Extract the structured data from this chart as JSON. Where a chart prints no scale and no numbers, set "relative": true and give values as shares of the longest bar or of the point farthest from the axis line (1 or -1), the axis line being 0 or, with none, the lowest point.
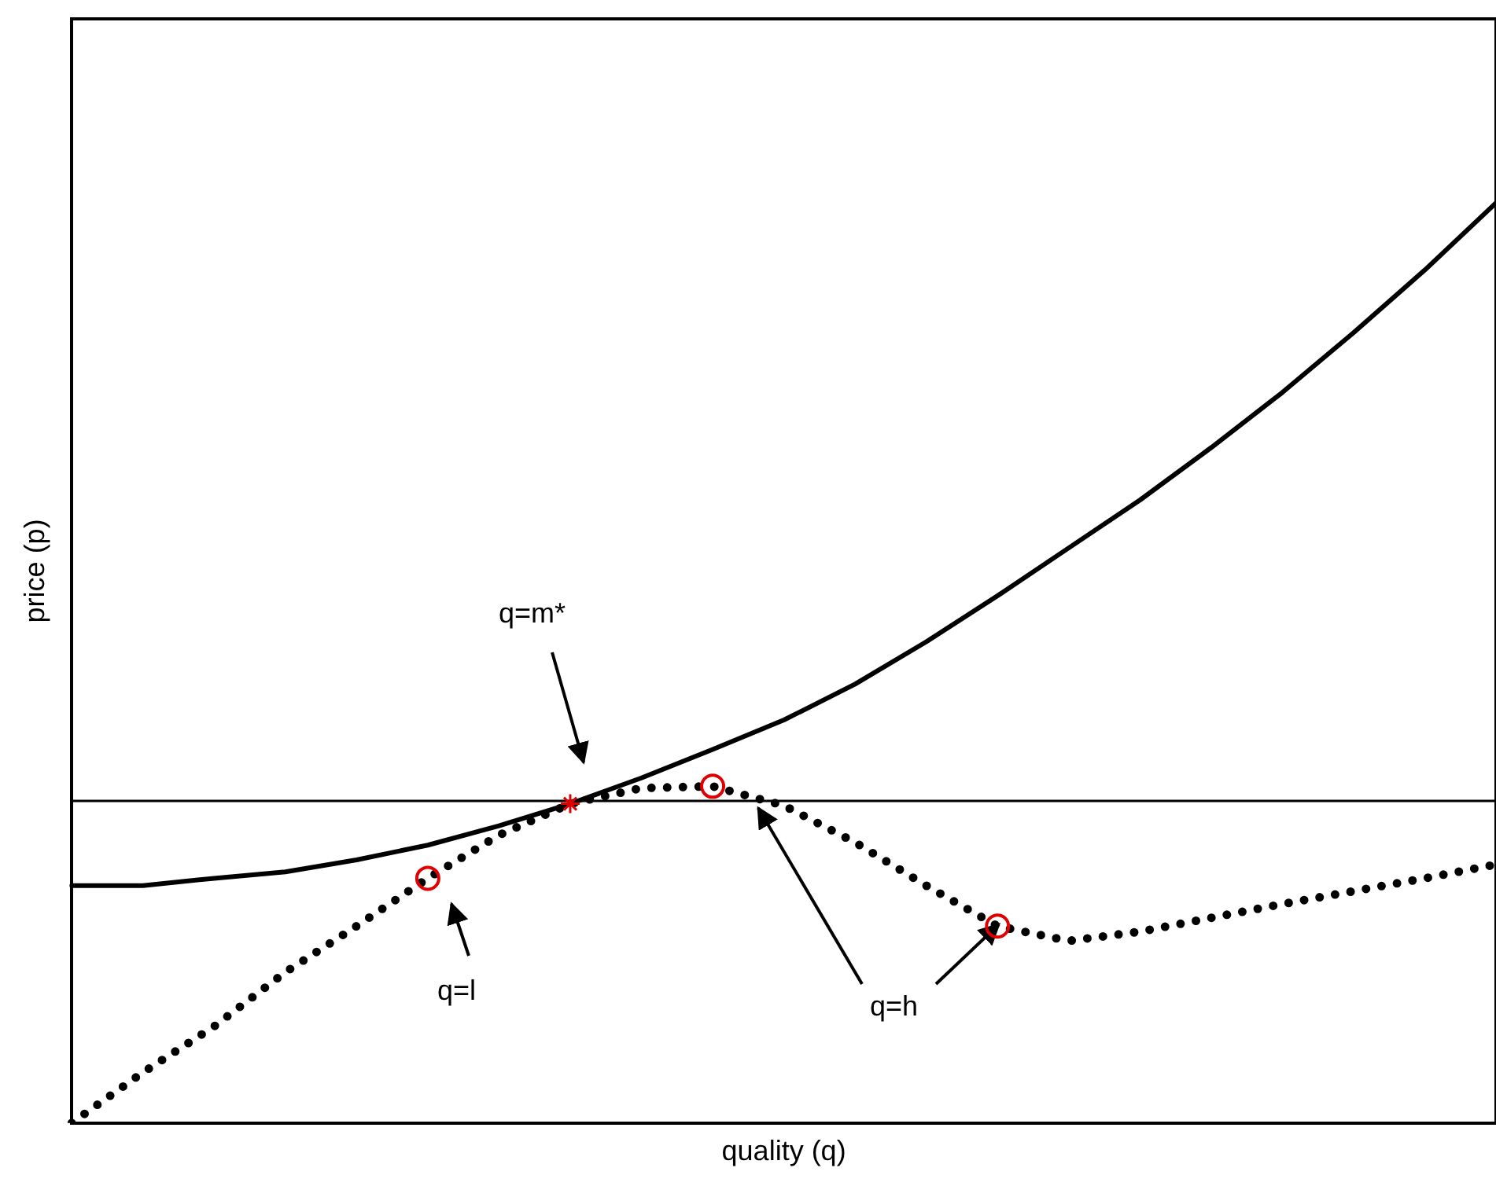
{
  "chart_data": {
    "type": "line",
    "relative": true,
    "xlabel": "quality (q)",
    "ylabel": "price (p)",
    "categories": [
      null,
      null,
      null,
      null,
      null,
      null,
      null,
      null,
      null,
      null,
      null,
      null,
      null,
      null,
      null,
      null,
      null,
      null,
      null,
      null,
      null
    ],
    "series": [
      {
        "color": "#000000",
        "line_style": "solid",
        "values": [
          0.258,
          0.258,
          0.266,
          0.273,
          0.286,
          0.302,
          0.323,
          0.347,
          0.375,
          0.406,
          0.438,
          0.477,
          0.523,
          0.573,
          0.625,
          0.677,
          0.734,
          0.794,
          0.859,
          0.927,
          1.0
        ]
      },
      {
        "color": "#000000",
        "line_style": "dotted",
        "values": [
          0,
          0.055,
          0.105,
          0.164,
          0.214,
          0.266,
          0.313,
          0.347,
          0.364,
          0.366,
          0.345,
          0.305,
          0.258,
          0.214,
          0.198,
          0.208,
          0.223,
          0.238,
          0.252,
          0.266,
          0.281
        ]
      }
    ],
    "ref_lines": [
      {
        "axis": "y",
        "value": 0.35,
        "color": "#000000"
      }
    ],
    "annotations": [
      "q=m*",
      "q=l",
      "q=h"
    ],
    "marker": "none",
    "grid": false,
    "legend": false
  }
}
